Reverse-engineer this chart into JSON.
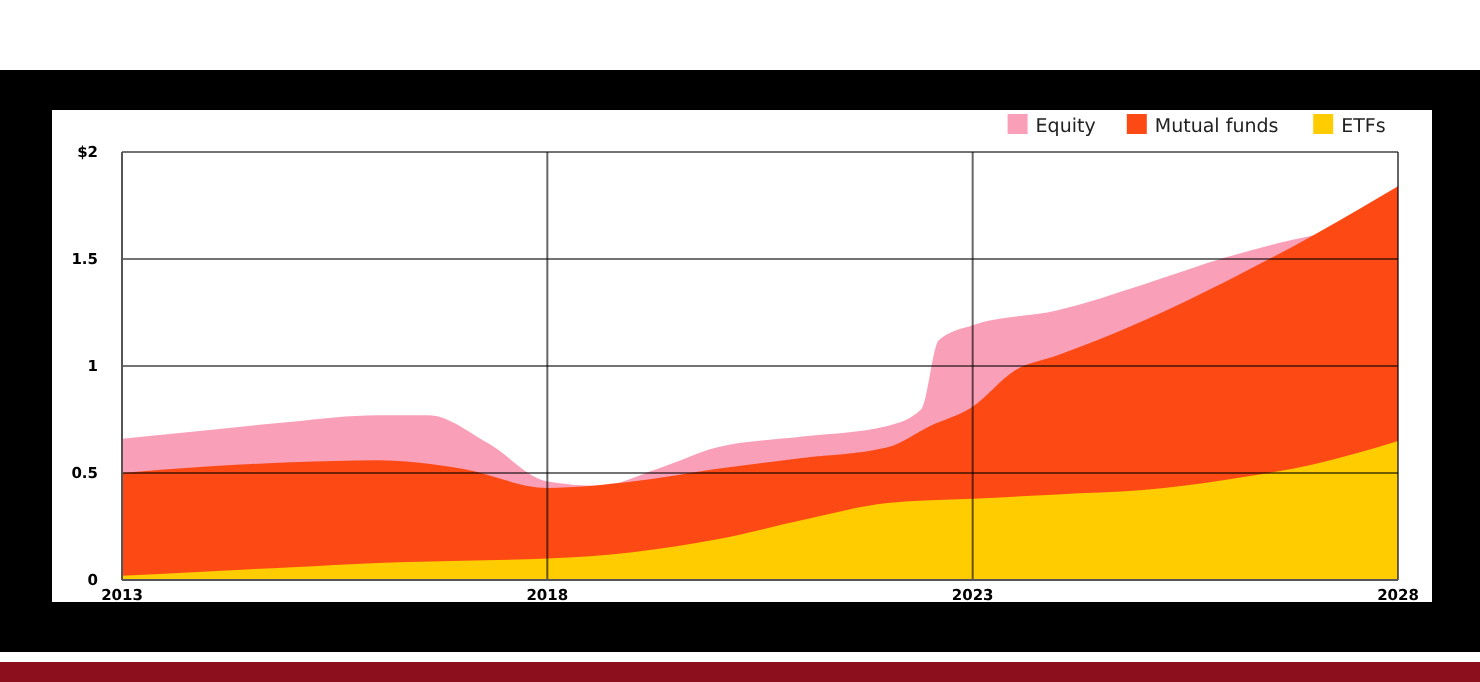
{
  "chart_data": {
    "type": "area",
    "xlim": [
      2013,
      2028
    ],
    "xticks": [
      2013,
      2018,
      2023,
      2028
    ],
    "ylim": [
      0,
      2
    ],
    "yticks": [
      0,
      0.5,
      1,
      1.5,
      {
        "value": 2,
        "label": "$2"
      }
    ],
    "grid": true,
    "legend": "top right",
    "series": [
      {
        "name": "Equity",
        "color": "#fa9fb8",
        "x": [
          2013,
          2014,
          2015,
          2016,
          2016.6,
          2017.3,
          2018,
          2018.6,
          2019.3,
          2020,
          2021,
          2022,
          2022.4,
          2022.6,
          2023,
          2024,
          2025,
          2026,
          2027,
          2028
        ],
        "values": [
          0.66,
          0.7,
          0.74,
          0.77,
          0.77,
          0.64,
          0.46,
          0.44,
          0.52,
          0.62,
          0.67,
          0.72,
          0.8,
          1.12,
          1.19,
          1.26,
          1.38,
          1.51,
          1.61,
          1.66
        ]
      },
      {
        "name": "Mutual funds",
        "color": "#fd4a14",
        "x": [
          2013,
          2014,
          2015,
          2016,
          2017,
          2018,
          2019,
          2020,
          2021,
          2022,
          2022.5,
          2023,
          2023.5,
          2024,
          2025,
          2026,
          2027,
          2028
        ],
        "values": [
          0.5,
          0.53,
          0.55,
          0.56,
          0.52,
          0.43,
          0.46,
          0.52,
          0.57,
          0.62,
          0.72,
          0.81,
          0.98,
          1.05,
          1.21,
          1.4,
          1.61,
          1.84
        ]
      },
      {
        "name": "ETFs",
        "color": "#ffcc00",
        "x": [
          2013,
          2014,
          2015,
          2016,
          2017,
          2018,
          2019,
          2020,
          2021,
          2022,
          2023,
          2024,
          2025,
          2026,
          2027,
          2028
        ],
        "values": [
          0.02,
          0.04,
          0.06,
          0.08,
          0.09,
          0.1,
          0.13,
          0.19,
          0.28,
          0.36,
          0.38,
          0.4,
          0.42,
          0.47,
          0.54,
          0.65
        ]
      }
    ]
  }
}
